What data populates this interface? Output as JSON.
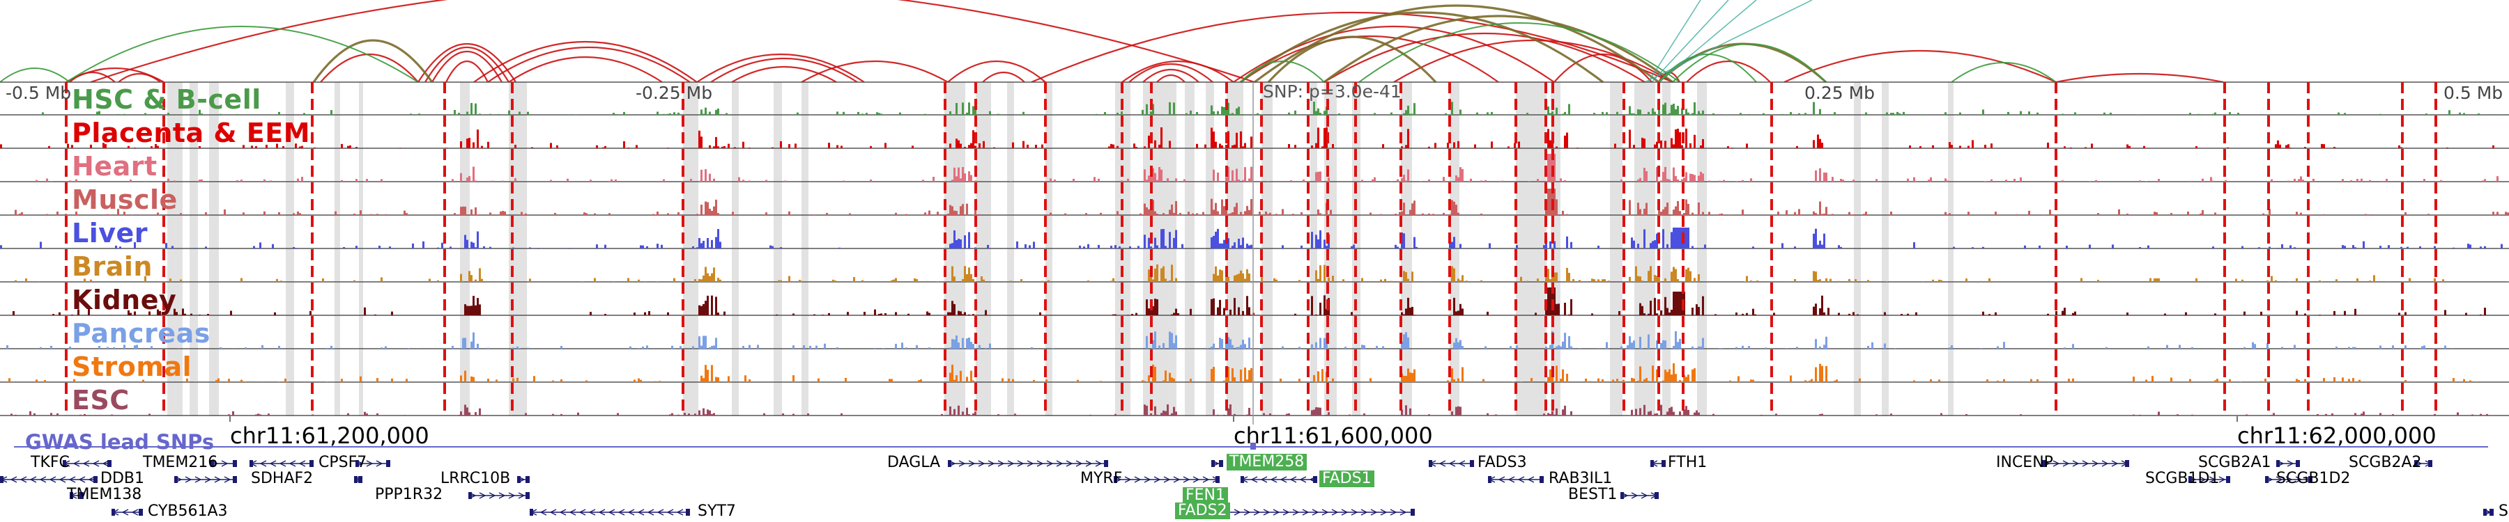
{
  "axis_labels": [
    "-0.5 Mb",
    "-0.25 Mb",
    "0.25 Mb",
    "0.5 Mb"
  ],
  "snp_label": "SNP: p=3.0e-41",
  "tracks": [
    {
      "id": "hsc",
      "label": "HSC & B-cell",
      "color": "#4a9a4a"
    },
    {
      "id": "placenta",
      "label": "Placenta & EEM",
      "color": "#dd0000"
    },
    {
      "id": "heart",
      "label": "Heart",
      "color": "#e06f7f"
    },
    {
      "id": "muscle",
      "label": "Muscle",
      "color": "#c9605f"
    },
    {
      "id": "liver",
      "label": "Liver",
      "color": "#4a50e0"
    },
    {
      "id": "brain",
      "label": "Brain",
      "color": "#cc8822"
    },
    {
      "id": "kidney",
      "label": "Kidney",
      "color": "#6b0d0d"
    },
    {
      "id": "pancreas",
      "label": "Pancreas",
      "color": "#7aa0e6"
    },
    {
      "id": "stromal",
      "label": "Stromal",
      "color": "#f07810"
    },
    {
      "id": "esc",
      "label": "ESC",
      "color": "#9a4a60"
    }
  ],
  "gwas_label": "GWAS lead SNPs",
  "coords": [
    "chr11:61,200,000",
    "chr11:61,600,000",
    "chr11:62,000,000"
  ],
  "genes": [
    {
      "name": "TKFC",
      "hl": false
    },
    {
      "name": "TMEM216",
      "hl": false
    },
    {
      "name": "CPSF7",
      "hl": false
    },
    {
      "name": "DDB1",
      "hl": false
    },
    {
      "name": "SDHAF2",
      "hl": false
    },
    {
      "name": "LRRC10B",
      "hl": false
    },
    {
      "name": "TMEM138",
      "hl": false
    },
    {
      "name": "PPP1R32",
      "hl": false
    },
    {
      "name": "CYB561A3",
      "hl": false
    },
    {
      "name": "SYT7",
      "hl": false
    },
    {
      "name": "DAGLA",
      "hl": false
    },
    {
      "name": "MYRF",
      "hl": false
    },
    {
      "name": "TMEM258",
      "hl": true
    },
    {
      "name": "FADS1",
      "hl": true
    },
    {
      "name": "FEN1",
      "hl": true
    },
    {
      "name": "FADS2",
      "hl": true
    },
    {
      "name": "FADS3",
      "hl": false
    },
    {
      "name": "RAB3IL1",
      "hl": false
    },
    {
      "name": "BEST1",
      "hl": false
    },
    {
      "name": "FTH1",
      "hl": false
    },
    {
      "name": "INCENP",
      "hl": false
    },
    {
      "name": "SCGB1D1",
      "hl": false
    },
    {
      "name": "SCGB2A1",
      "hl": false
    },
    {
      "name": "SCGB1D2",
      "hl": false
    },
    {
      "name": "SCGB2A2",
      "hl": false
    },
    {
      "name": "S",
      "hl": false
    }
  ],
  "colors": {
    "arc_red": "#cc1111",
    "arc_olive": "#7a6a2a",
    "arc_green": "#3a9a3a",
    "highlight_dash": "#dd1111",
    "region_gray": "#d8d8d8",
    "gene_model": "#1a1a70",
    "gwas_line": "#6666cc",
    "snp_line": "#999999"
  },
  "icons": {
    "strand_arrow": "chevron-arrow",
    "gwas_marker": "square-marker"
  }
}
